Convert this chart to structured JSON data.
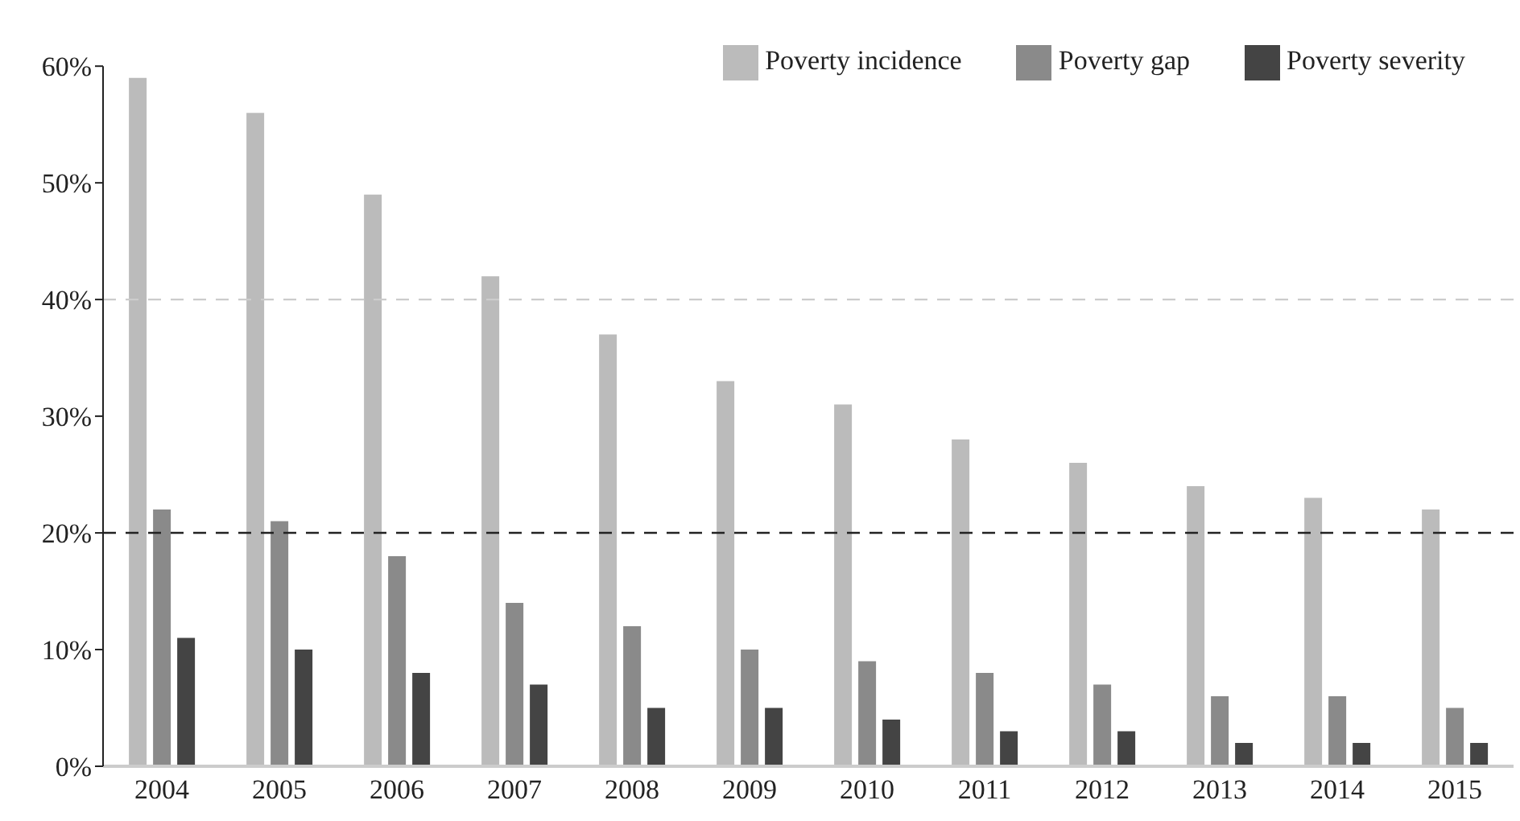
{
  "chart_data": {
    "type": "bar",
    "categories": [
      "2004",
      "2005",
      "2006",
      "2007",
      "2008",
      "2009",
      "2010",
      "2011",
      "2012",
      "2013",
      "2014",
      "2015"
    ],
    "series": [
      {
        "name": "Poverty incidence",
        "color": "#bbbbbb",
        "values": [
          59,
          56,
          49,
          42,
          37,
          33,
          31,
          28,
          26,
          24,
          23,
          22
        ]
      },
      {
        "name": "Poverty gap",
        "color": "#8a8a8a",
        "values": [
          22,
          21,
          18,
          14,
          12,
          10,
          9,
          8,
          7,
          6,
          6,
          5
        ]
      },
      {
        "name": "Poverty severity",
        "color": "#444444",
        "values": [
          11,
          10,
          8,
          7,
          5,
          5,
          4,
          3,
          3,
          2,
          2,
          2
        ]
      }
    ],
    "ylim": [
      0,
      60
    ],
    "yticks": [
      {
        "value": 0,
        "label": "0%"
      },
      {
        "value": 10,
        "label": "10%"
      },
      {
        "value": 20,
        "label": "20%"
      },
      {
        "value": 30,
        "label": "30%"
      },
      {
        "value": 40,
        "label": "40%"
      },
      {
        "value": 50,
        "label": "50%"
      },
      {
        "value": 60,
        "label": "60%"
      }
    ],
    "ref_lines": [
      {
        "axis": "y",
        "value": 40,
        "color": "#cccccc",
        "line_style": "dashed"
      },
      {
        "axis": "y",
        "value": 20,
        "color": "#222222",
        "line_style": "dashed"
      }
    ],
    "grid": false,
    "legend": "top right"
  }
}
